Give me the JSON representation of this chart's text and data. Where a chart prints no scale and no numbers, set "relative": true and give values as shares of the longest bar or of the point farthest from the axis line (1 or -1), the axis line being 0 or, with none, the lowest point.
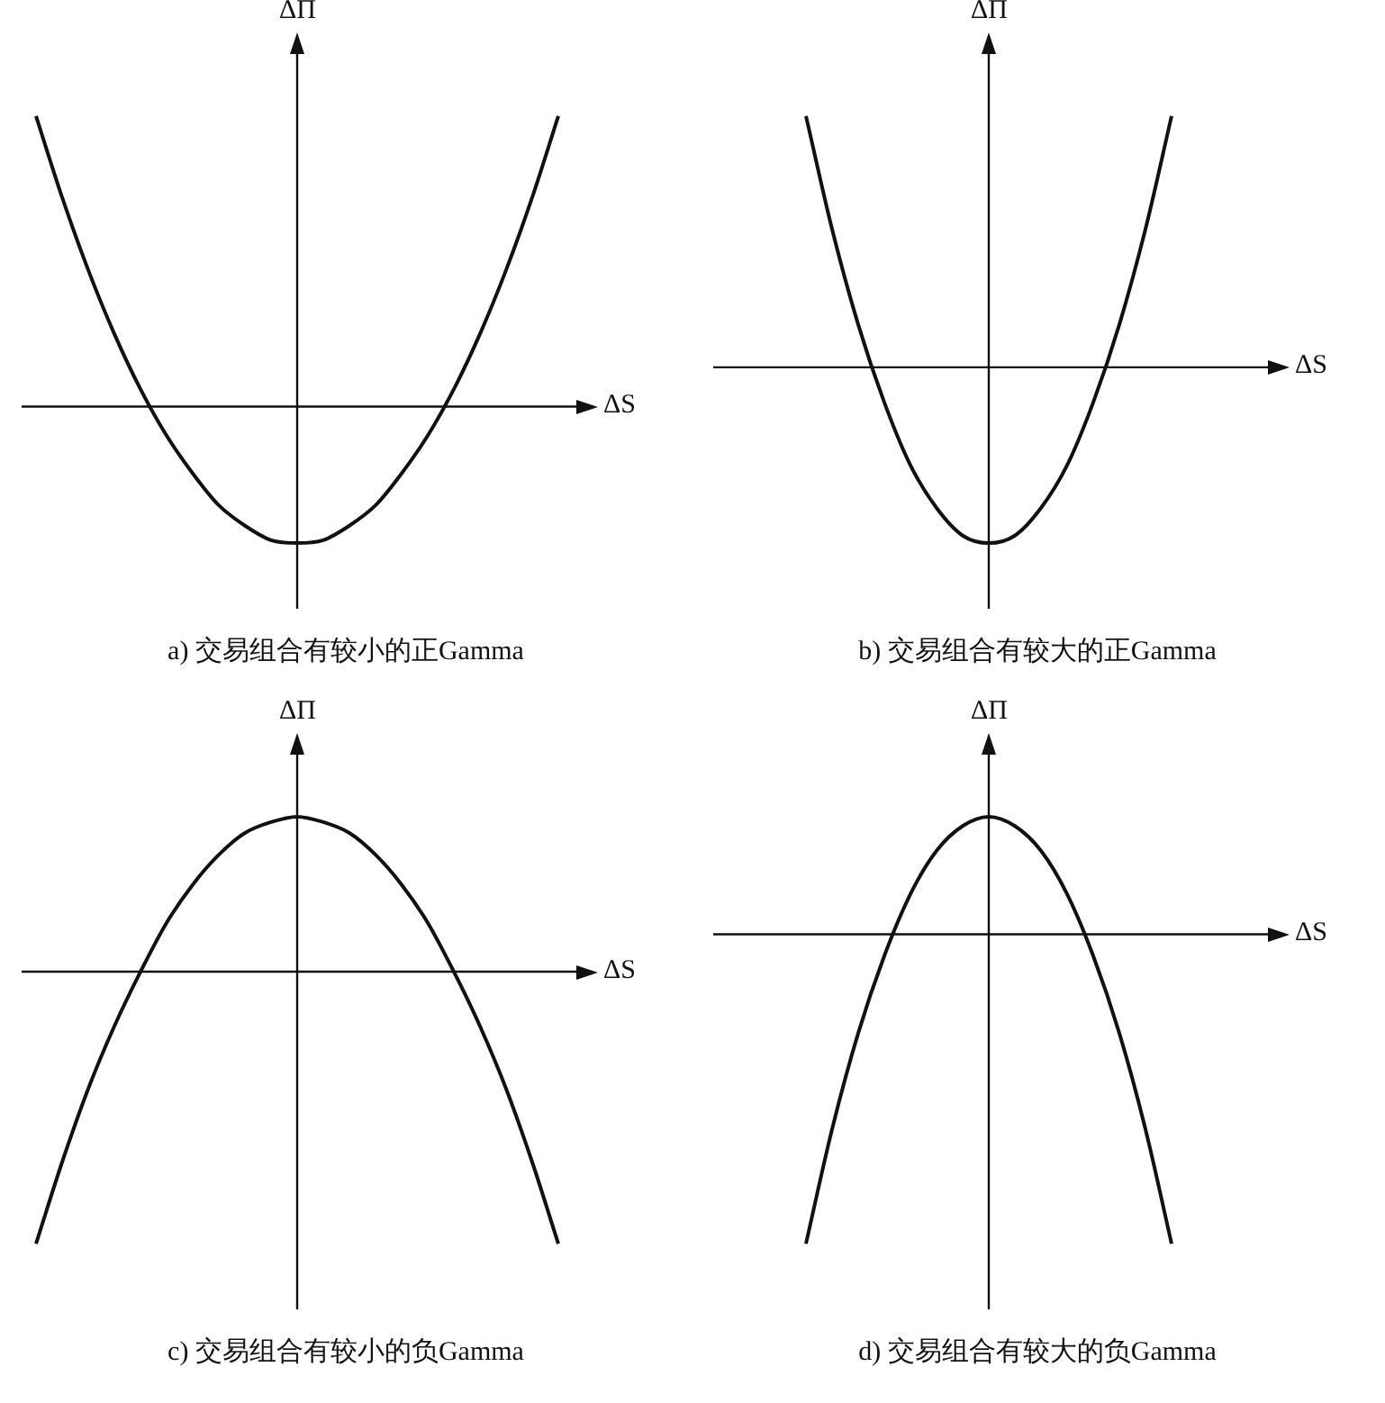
{
  "chart_data": [
    {
      "type": "line",
      "relative": true,
      "title": "a) 交易组合有较小的正Gamma",
      "xlabel": "ΔS",
      "ylabel": "ΔΠ",
      "categories": [
        null,
        null,
        null,
        null,
        null,
        null,
        null,
        null,
        null,
        null,
        null,
        null,
        null,
        null,
        null,
        null,
        null,
        null,
        null,
        null,
        null
      ],
      "color": "#111111",
      "marker": "none",
      "values": [
        1.0,
        0.72,
        0.47,
        0.25,
        0.06,
        -0.1,
        -0.23,
        -0.34,
        -0.41,
        -0.46,
        -0.47,
        -0.46,
        -0.41,
        -0.34,
        -0.23,
        -0.1,
        0.06,
        0.25,
        0.47,
        0.72,
        1.0
      ]
    },
    {
      "type": "line",
      "relative": true,
      "title": "b) 交易组合有较大的正Gamma",
      "xlabel": "ΔS",
      "ylabel": "ΔΠ",
      "categories": [
        null,
        null,
        null,
        null,
        null,
        null,
        null,
        null,
        null,
        null,
        null,
        null,
        null,
        null,
        null,
        null,
        null,
        null,
        null,
        null,
        null
      ],
      "color": "#111111",
      "marker": "none",
      "values": [
        null,
        null,
        null,
        1.0,
        0.55,
        0.17,
        -0.14,
        -0.39,
        -0.56,
        -0.67,
        -0.7,
        -0.67,
        -0.56,
        -0.39,
        -0.14,
        0.17,
        0.55,
        1.0,
        null,
        null,
        null
      ]
    },
    {
      "type": "line",
      "relative": true,
      "title": "c) 交易组合有较小的负Gamma",
      "xlabel": "ΔS",
      "ylabel": "ΔΠ",
      "categories": [
        null,
        null,
        null,
        null,
        null,
        null,
        null,
        null,
        null,
        null,
        null,
        null,
        null,
        null,
        null,
        null,
        null,
        null,
        null,
        null,
        null
      ],
      "color": "#111111",
      "marker": "none",
      "values": [
        -1.0,
        -0.7,
        -0.43,
        -0.2,
        0.0,
        0.18,
        0.32,
        0.43,
        0.51,
        0.55,
        0.57,
        0.55,
        0.51,
        0.43,
        0.32,
        0.18,
        0.0,
        -0.2,
        -0.43,
        -0.7,
        -1.0
      ]
    },
    {
      "type": "line",
      "relative": true,
      "title": "d) 交易组合有较大的负Gamma",
      "xlabel": "ΔS",
      "ylabel": "ΔΠ",
      "categories": [
        null,
        null,
        null,
        null,
        null,
        null,
        null,
        null,
        null,
        null,
        null,
        null,
        null,
        null,
        null,
        null,
        null,
        null,
        null,
        null,
        null
      ],
      "color": "#111111",
      "marker": "none",
      "values": [
        null,
        null,
        null,
        -1.0,
        -0.63,
        -0.32,
        -0.07,
        0.13,
        0.27,
        0.35,
        0.38,
        0.35,
        0.27,
        0.13,
        -0.07,
        -0.32,
        -0.63,
        -1.0,
        null,
        null,
        null
      ]
    }
  ]
}
